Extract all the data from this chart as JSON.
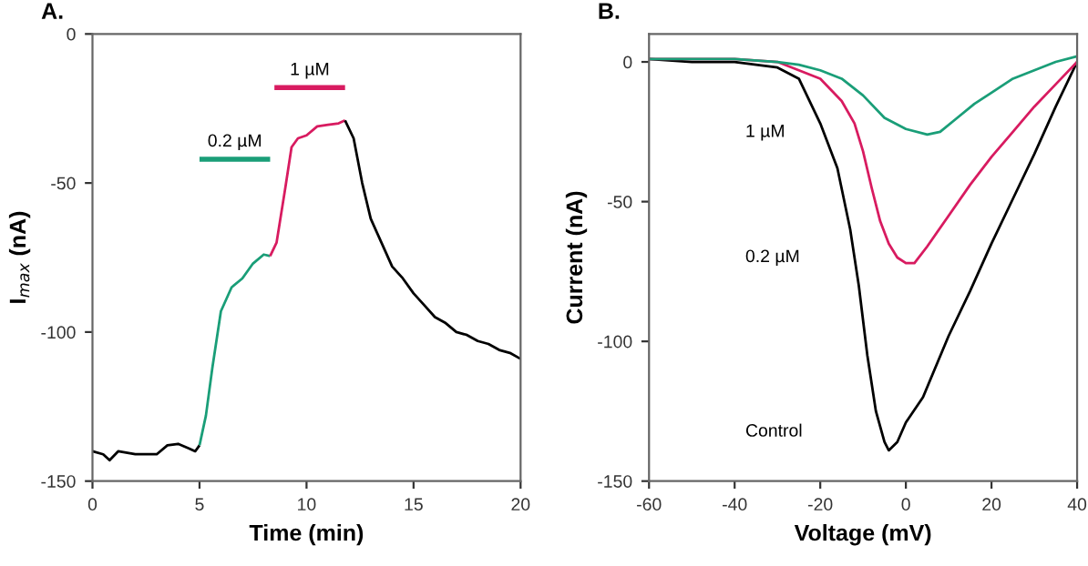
{
  "chart_data": [
    {
      "type": "line",
      "title": "A.",
      "xlabel": "Time (min)",
      "ylabel": "I$_{max}$ (nA)",
      "xlim": [
        0,
        20
      ],
      "ylim": [
        -150,
        0
      ],
      "xticks": [
        0,
        5,
        10,
        15,
        20
      ],
      "yticks": [
        -150,
        -100,
        -50,
        0
      ],
      "grid": false,
      "legend": false,
      "series": [
        {
          "color": "#000000",
          "x": [
            0,
            0.5,
            0.8,
            1.2,
            2,
            2.5,
            3,
            3.5,
            4,
            4.5,
            4.8,
            5
          ],
          "values": [
            -140,
            -141,
            -143,
            -140,
            -141,
            -141,
            -141,
            -138,
            -137.5,
            -139,
            -140,
            -138
          ]
        },
        {
          "color": "#1a9e78",
          "x": [
            5,
            5.3,
            5.6,
            6,
            6.5,
            7,
            7.5,
            8,
            8.3
          ],
          "values": [
            -138,
            -128,
            -112,
            -93,
            -85,
            -82,
            -77,
            -74,
            -74.5
          ]
        },
        {
          "color": "#d81b60",
          "x": [
            8.3,
            8.6,
            9,
            9.3,
            9.6,
            10,
            10.5,
            11,
            11.5,
            11.8
          ],
          "values": [
            -74.5,
            -70,
            -52,
            -38,
            -35,
            -34,
            -31,
            -30.5,
            -30,
            -29
          ]
        },
        {
          "color": "#000000",
          "x": [
            11.8,
            12.2,
            12.6,
            13,
            13.5,
            14,
            14.5,
            15,
            15.5,
            16,
            16.5,
            17,
            17.5,
            18,
            18.5,
            19,
            19.5,
            20
          ],
          "values": [
            -29,
            -35,
            -50,
            -62,
            -70,
            -78,
            -82,
            -87,
            -91,
            -95,
            -97,
            -100,
            -101,
            -103,
            -104,
            -106,
            -107,
            -109
          ]
        },
        {
          "name": "0.2 µM",
          "color": "#1a9e78",
          "x": [
            5,
            8.3
          ],
          "values": [
            -42,
            -42
          ]
        },
        {
          "name": "1 µM",
          "color": "#d81b60",
          "x": [
            8.5,
            11.8
          ],
          "values": [
            -18,
            -18
          ]
        }
      ]
    },
    {
      "type": "line",
      "title": "B.",
      "xlabel": "Voltage (mV)",
      "ylabel": "Current (nA)",
      "xlim": [
        -60,
        40
      ],
      "ylim": [
        -150,
        10
      ],
      "xticks": [
        -60,
        -40,
        -20,
        0,
        20,
        40
      ],
      "yticks": [
        -150,
        -100,
        -50,
        0
      ],
      "grid": false,
      "legend": false,
      "series": [
        {
          "color": "#000000",
          "x": [
            -60,
            -50,
            -40,
            -30,
            -25,
            -20,
            -16,
            -13,
            -11,
            -9,
            -7,
            -5,
            -4,
            -2,
            0,
            4,
            10,
            15,
            20,
            25,
            30,
            35,
            40
          ],
          "values": [
            1,
            0,
            0,
            -2,
            -6,
            -22,
            -38,
            -60,
            -80,
            -105,
            -125,
            -136,
            -139,
            -136,
            -129,
            -120,
            -98,
            -82,
            -65,
            -49,
            -33,
            -16,
            0
          ]
        },
        {
          "color": "#d81b60",
          "x": [
            -60,
            -40,
            -30,
            -25,
            -20,
            -15,
            -12,
            -10,
            -8,
            -6,
            -4,
            -2,
            0,
            2,
            5,
            10,
            15,
            20,
            25,
            30,
            35,
            40
          ],
          "values": [
            1,
            1,
            0,
            -3,
            -6,
            -14,
            -22,
            -32,
            -45,
            -57,
            -65,
            -70,
            -72,
            -72,
            -66,
            -55,
            -44,
            -34,
            -25,
            -16,
            -8,
            0
          ]
        },
        {
          "color": "#1a9e78",
          "x": [
            -60,
            -40,
            -30,
            -25,
            -20,
            -15,
            -10,
            -5,
            0,
            5,
            8,
            12,
            16,
            20,
            25,
            30,
            35,
            40
          ],
          "values": [
            1,
            1,
            0,
            -1,
            -3,
            -6,
            -12,
            -20,
            -24,
            -26,
            -25,
            -20,
            -15,
            -11,
            -6,
            -3,
            0,
            2
          ]
        }
      ],
      "annotations": [
        "1 µM",
        "0.2 µM",
        "Control"
      ]
    }
  ]
}
